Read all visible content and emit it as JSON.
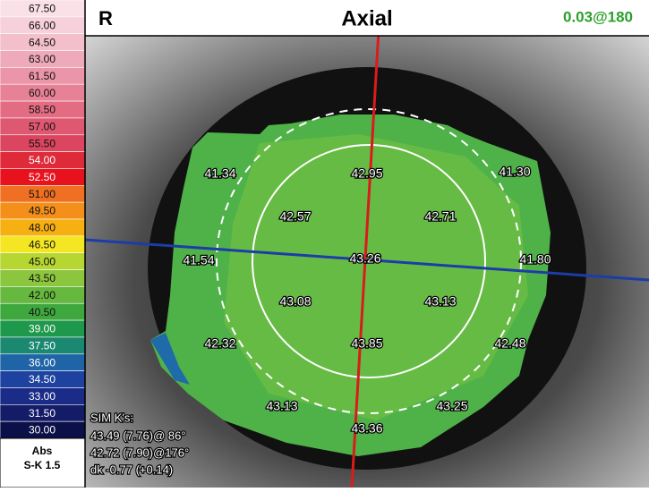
{
  "header": {
    "eye": "R",
    "title": "Axial",
    "astig": "0.03@180"
  },
  "scale": {
    "steps": [
      {
        "label": "67.50",
        "color": "#f9e1e7"
      },
      {
        "label": "66.00",
        "color": "#f6d0da"
      },
      {
        "label": "64.50",
        "color": "#f3bfcb"
      },
      {
        "label": "63.00",
        "color": "#efaaba"
      },
      {
        "label": "61.50",
        "color": "#eb96a8"
      },
      {
        "label": "60.00",
        "color": "#e78296"
      },
      {
        "label": "58.50",
        "color": "#e36c83"
      },
      {
        "label": "57.00",
        "color": "#df5871"
      },
      {
        "label": "55.50",
        "color": "#db4560"
      },
      {
        "label": "54.00",
        "color": "#df2a3a"
      },
      {
        "label": "52.50",
        "color": "#e8121e"
      },
      {
        "label": "51.00",
        "color": "#ef7022"
      },
      {
        "label": "49.50",
        "color": "#f4901a"
      },
      {
        "label": "48.00",
        "color": "#f7b012"
      },
      {
        "label": "46.50",
        "color": "#f4e622"
      },
      {
        "label": "45.00",
        "color": "#b6d632"
      },
      {
        "label": "43.50",
        "color": "#8cc63e"
      },
      {
        "label": "42.00",
        "color": "#66b83e"
      },
      {
        "label": "40.50",
        "color": "#3ea83e"
      },
      {
        "label": "39.00",
        "color": "#1e984a"
      },
      {
        "label": "37.50",
        "color": "#1b8872"
      },
      {
        "label": "36.00",
        "color": "#2064a8"
      },
      {
        "label": "34.50",
        "color": "#1d42a0"
      },
      {
        "label": "33.00",
        "color": "#1a2b88"
      },
      {
        "label": "31.50",
        "color": "#141c68"
      },
      {
        "label": "30.00",
        "color": "#0c1048"
      }
    ],
    "mode": "Abs",
    "step": "S-K 1.5"
  },
  "map_values": [
    "41.34",
    "42.95",
    "41.30",
    "42.57",
    "42.71",
    "41.54",
    "43.26",
    "41.80",
    "43.08",
    "43.13",
    "42.32",
    "43.85",
    "42.48",
    "43.13",
    "43.25",
    "43.36"
  ],
  "sim_k": {
    "title": "SIM K's:",
    "lines": [
      "43.49 (7.76)@ 86°",
      "42.72 (7.90)@176°",
      "dk -0.77 (+0.14)"
    ]
  }
}
